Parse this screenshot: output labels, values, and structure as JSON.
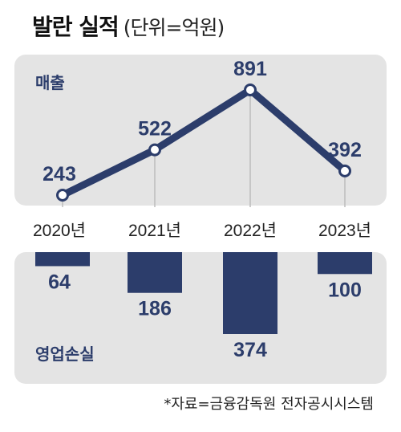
{
  "header": {
    "title": "발란 실적",
    "unit": "(단위=억원)"
  },
  "source": "*자료=금융감독원 전자공시시스템",
  "colors": {
    "navy": "#2c3d6b",
    "panel": "#e4e4e4",
    "grid": "#bcbcbc",
    "label_blue": "#2c3d6b"
  },
  "chart_data": [
    {
      "type": "line",
      "series_label": "매출",
      "categories": [
        "2020년",
        "2021년",
        "2022년",
        "2023년"
      ],
      "values": [
        243,
        522,
        891,
        392
      ],
      "ylim": [
        0,
        1000
      ]
    },
    {
      "type": "bar",
      "series_label": "영업손실",
      "categories": [
        "2020년",
        "2021년",
        "2022년",
        "2023년"
      ],
      "values": [
        64,
        186,
        374,
        100
      ],
      "ylim": [
        0,
        400
      ]
    }
  ]
}
